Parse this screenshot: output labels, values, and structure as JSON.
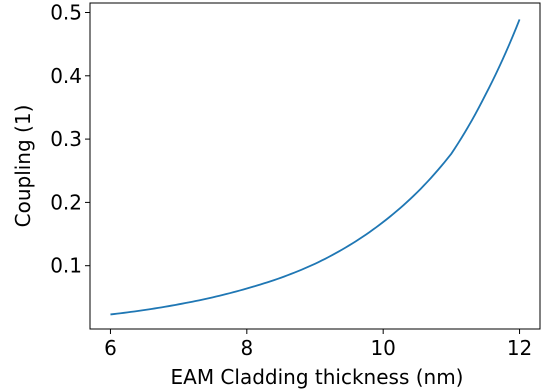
{
  "chart_data": {
    "type": "line",
    "title": "",
    "xlabel": "EAM Cladding thickness (nm)",
    "ylabel": "Coupling (1)",
    "xlim": [
      5.7,
      12.3
    ],
    "ylim": [
      0.0,
      0.515
    ],
    "xticks": [
      6,
      8,
      10,
      12
    ],
    "xtick_labels": [
      "6",
      "8",
      "10",
      "12"
    ],
    "yticks": [
      0.1,
      0.2,
      0.3,
      0.4,
      0.5
    ],
    "ytick_labels": [
      "0.1",
      "0.2",
      "0.3",
      "0.4",
      "0.5"
    ],
    "grid": false,
    "legend": "none",
    "series": [
      {
        "color": "#1f77b4",
        "x": [
          6.0,
          6.5,
          7.0,
          7.5,
          8.0,
          8.5,
          9.0,
          9.5,
          10.0,
          10.5,
          11.0,
          11.5,
          12.0
        ],
        "y": [
          0.023,
          0.03,
          0.039,
          0.05,
          0.064,
          0.081,
          0.103,
          0.132,
          0.169,
          0.216,
          0.277,
          0.37,
          0.489
        ]
      }
    ]
  }
}
